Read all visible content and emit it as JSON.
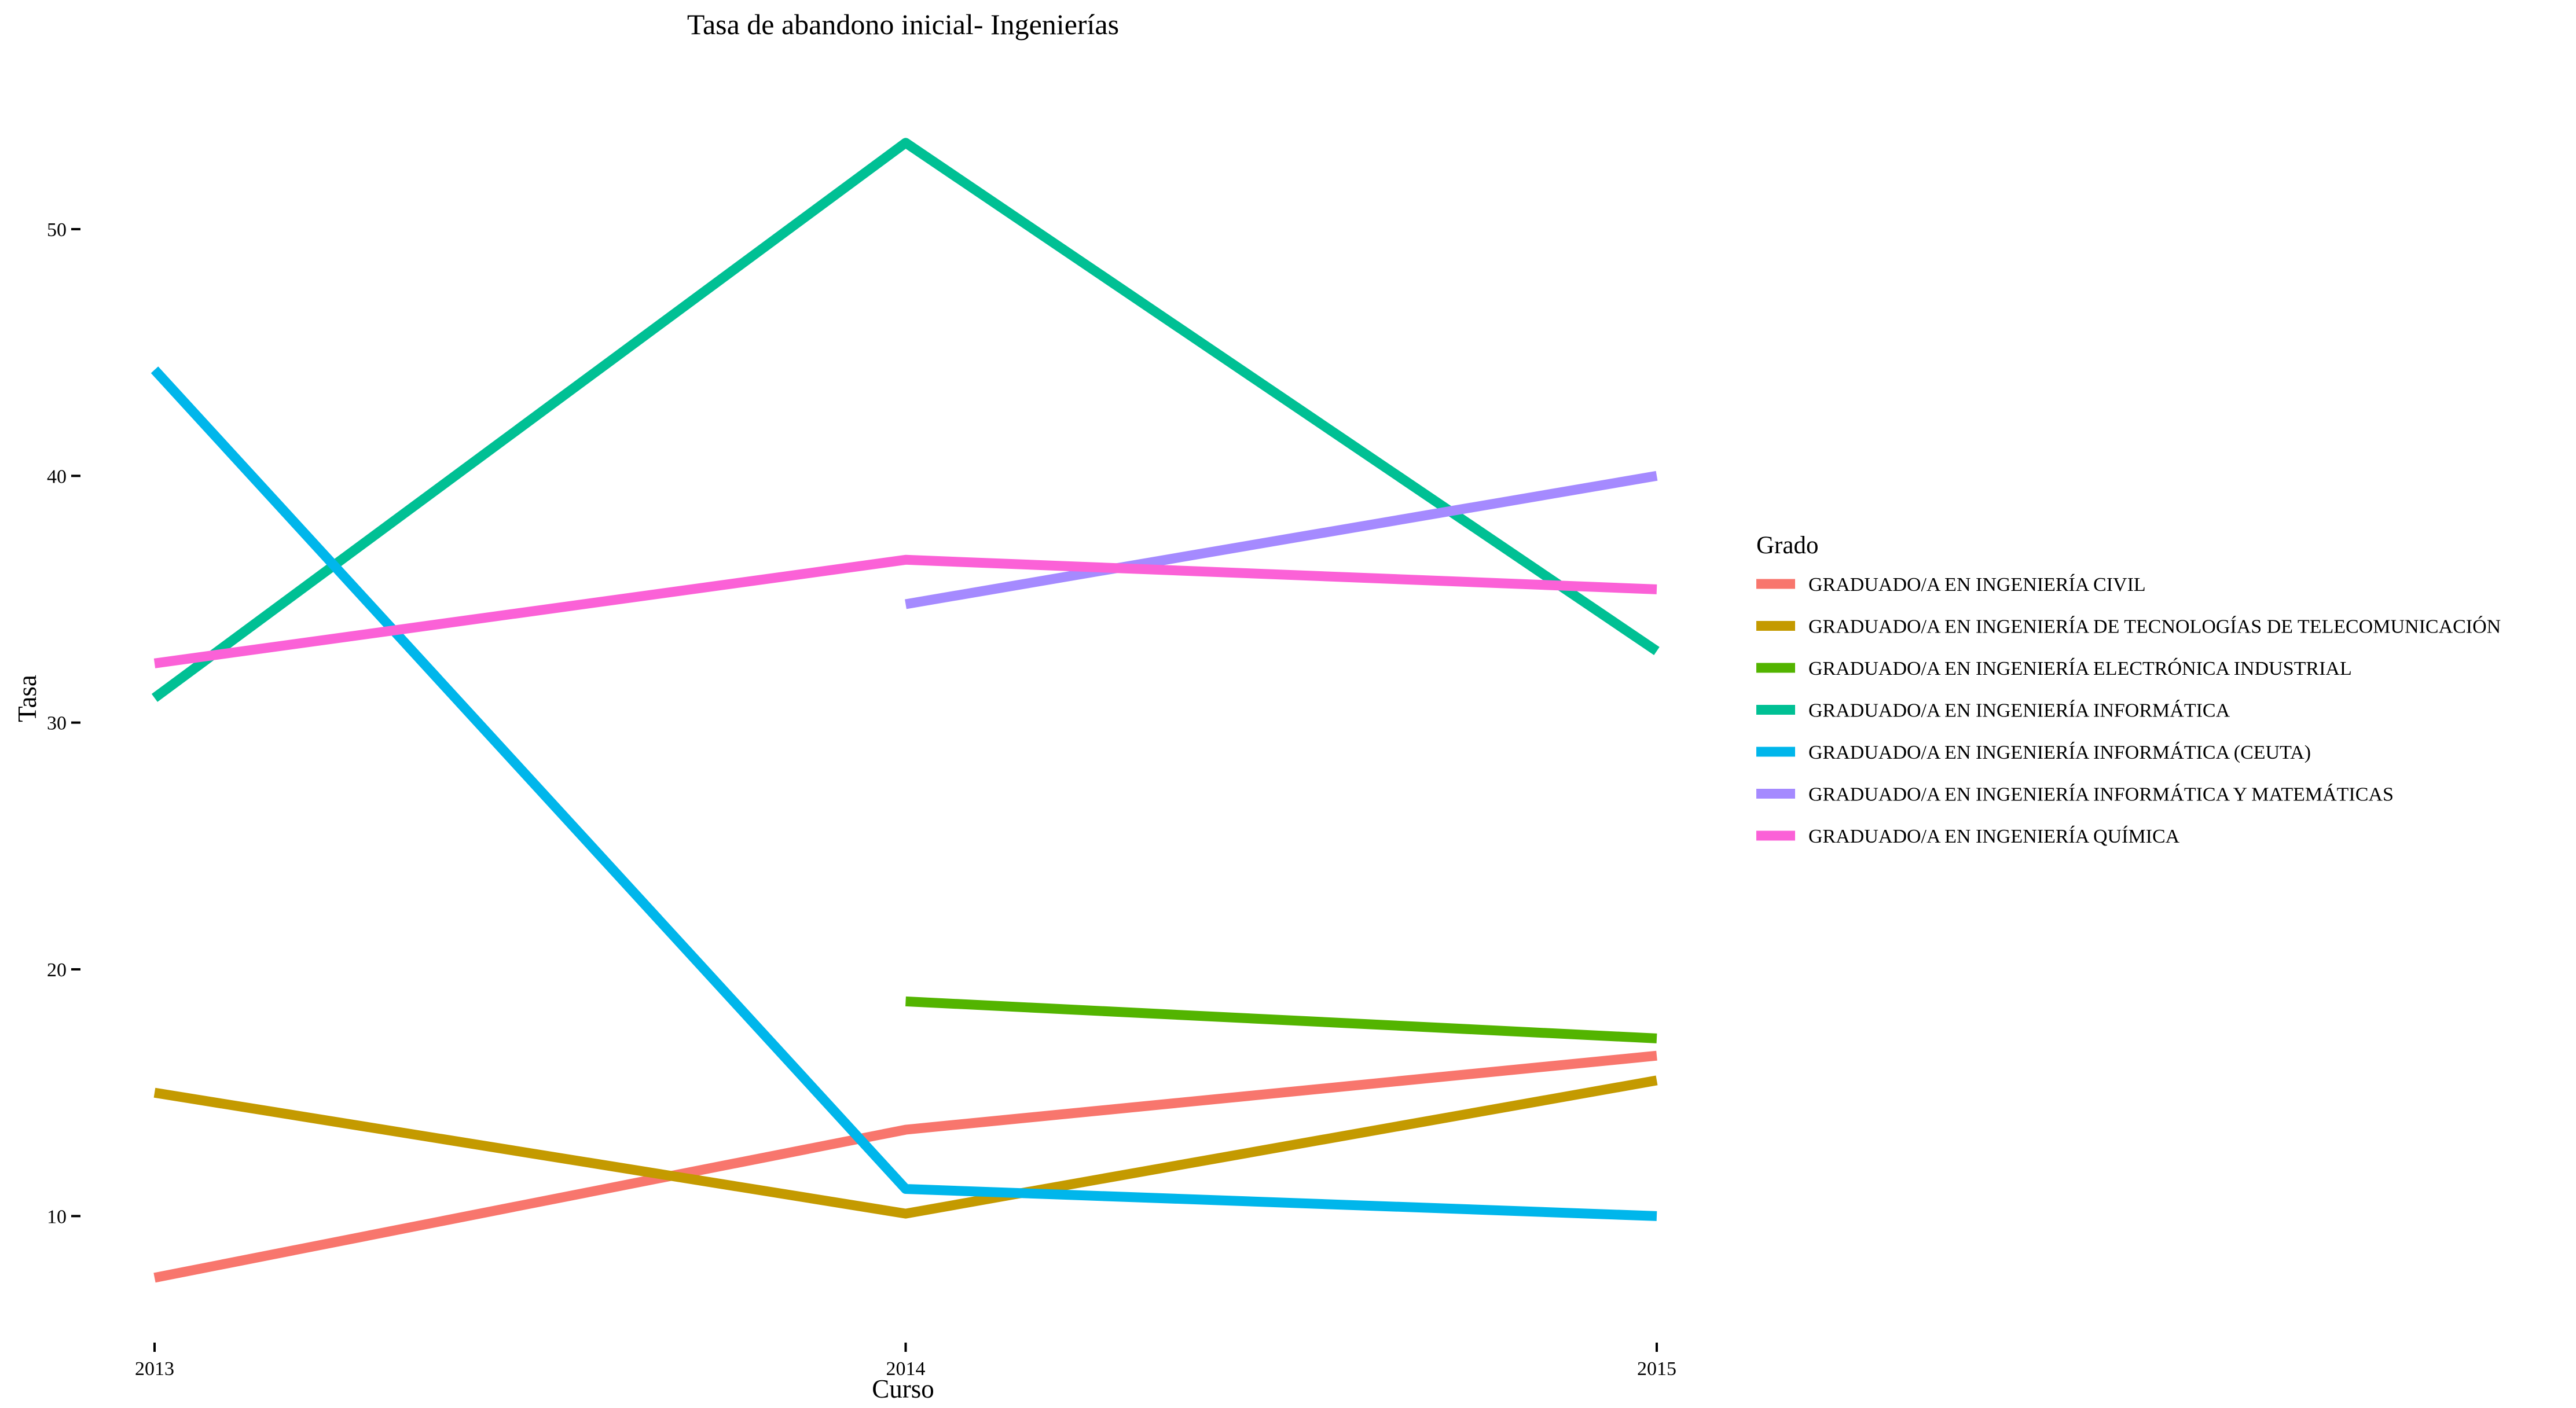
{
  "chart_data": {
    "type": "line",
    "title": "Tasa de abandono inicial- Ingenierías",
    "xlabel": "Curso",
    "ylabel": "Tasa",
    "x": [
      "2013",
      "2014",
      "2015"
    ],
    "xlim": [
      2013,
      2015
    ],
    "ylim": [
      5.2,
      55.3
    ],
    "yticks": [
      10,
      20,
      30,
      40,
      50
    ],
    "grid": false,
    "legend_position": "right",
    "legend_title": "Grado",
    "series": [
      {
        "name": "GRADUADO/A EN INGENIERÍA CIVIL",
        "color": "#F8766D",
        "values": [
          7.5,
          13.5,
          16.5
        ]
      },
      {
        "name": "GRADUADO/A EN INGENIERÍA DE TECNOLOGÍAS DE TELECOMUNICACIÓN",
        "color": "#C49A00",
        "values": [
          15.0,
          10.1,
          15.5
        ]
      },
      {
        "name": "GRADUADO/A EN INGENIERÍA ELECTRÓNICA INDUSTRIAL",
        "color": "#53B400",
        "values": [
          null,
          18.7,
          17.2
        ]
      },
      {
        "name": "GRADUADO/A EN INGENIERÍA INFORMÁTICA",
        "color": "#00C094",
        "values": [
          31.0,
          53.5,
          32.9
        ]
      },
      {
        "name": "GRADUADO/A EN INGENIERÍA INFORMÁTICA (CEUTA)",
        "color": "#00B6EB",
        "values": [
          44.3,
          11.1,
          10.0
        ]
      },
      {
        "name": "GRADUADO/A EN INGENIERÍA INFORMÁTICA Y MATEMÁTICAS",
        "color": "#A58AFF",
        "values": [
          null,
          34.8,
          40.0
        ]
      },
      {
        "name": "GRADUADO/A EN INGENIERÍA QUÍMICA",
        "color": "#FB61D7",
        "values": [
          32.4,
          36.6,
          35.4
        ]
      }
    ]
  }
}
